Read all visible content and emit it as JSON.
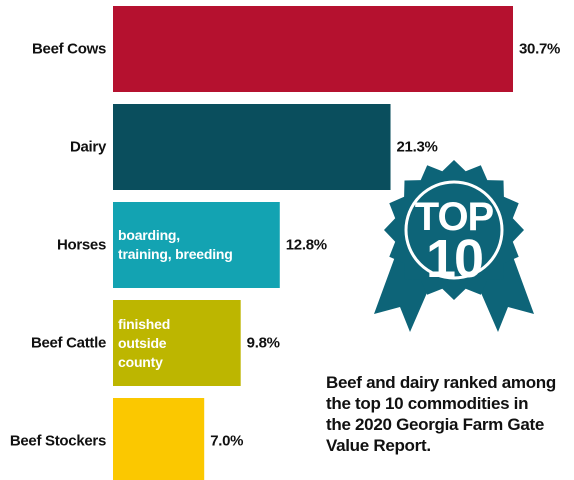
{
  "chart_data": {
    "type": "bar",
    "orientation": "horizontal",
    "categories": [
      "Beef Cows",
      "Dairy",
      "Horses",
      "Beef Cattle",
      "Beef Stockers"
    ],
    "values": [
      30.7,
      21.3,
      12.8,
      9.8,
      7.0
    ],
    "value_labels": [
      "30.7%",
      "21.3%",
      "12.8%",
      "9.8%",
      "7.0%"
    ],
    "bar_notes": [
      "",
      "",
      "boarding,\ntraining, breeding",
      "finished\noutside\ncounty",
      ""
    ],
    "colors": [
      "#b5112f",
      "#0a4e5d",
      "#13a3b2",
      "#bdb600",
      "#fbc800"
    ],
    "xlim": [
      0,
      30.7
    ]
  },
  "badge": {
    "top_text": "TOP",
    "number_text": "10",
    "color": "#0d6478"
  },
  "caption": "Beef and dairy ranked among\nthe top 10 commodities in\nthe 2020 Georgia Farm Gate\nValue Report."
}
